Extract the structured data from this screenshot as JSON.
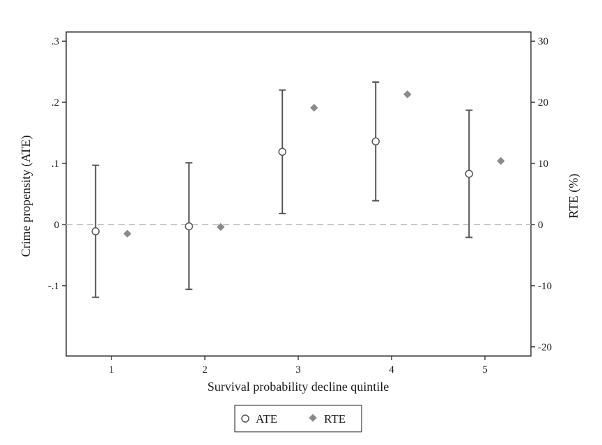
{
  "chart_data": {
    "type": "scatter",
    "xlabel": "Survival probability decline quintile",
    "ylabel_left": "Crime propensity (ATE)",
    "ylabel_right": "RTE (%)",
    "x_ticks": [
      "1",
      "2",
      "3",
      "4",
      "5"
    ],
    "y_left_ticks": [
      "-.1",
      "0",
      ".1",
      ".2",
      ".3"
    ],
    "y_left_tick_values": [
      -0.1,
      0,
      0.1,
      0.2,
      0.3
    ],
    "y_right_ticks": [
      "-20",
      "-10",
      "0",
      "10",
      "20",
      "30"
    ],
    "y_right_tick_values": [
      -20,
      -10,
      0,
      10,
      20,
      30
    ],
    "y_left_range": [
      -0.215,
      0.315
    ],
    "y_right_range": [
      -21.5,
      31.5
    ],
    "reference_line": 0,
    "grid": false,
    "legend_position": "bottom-center",
    "series": [
      {
        "name": "ATE",
        "marker": "hollow-circle",
        "axis": "left",
        "x": [
          0.83,
          1.83,
          2.83,
          3.83,
          4.83
        ],
        "y": [
          -0.011,
          -0.003,
          0.119,
          0.136,
          0.083
        ],
        "ci_low": [
          -0.119,
          -0.106,
          0.018,
          0.039,
          -0.021
        ],
        "ci_high": [
          0.097,
          0.101,
          0.22,
          0.233,
          0.187
        ]
      },
      {
        "name": "RTE",
        "marker": "filled-diamond",
        "axis": "right",
        "x": [
          1.17,
          2.17,
          3.17,
          4.17,
          5.17
        ],
        "y": [
          -1.5,
          -0.4,
          19.1,
          21.3,
          10.4
        ]
      }
    ],
    "colors": {
      "ci": "#555555",
      "ate": "#555555",
      "rte": "#8a8a8a",
      "refline": "#bfbfbf"
    }
  }
}
